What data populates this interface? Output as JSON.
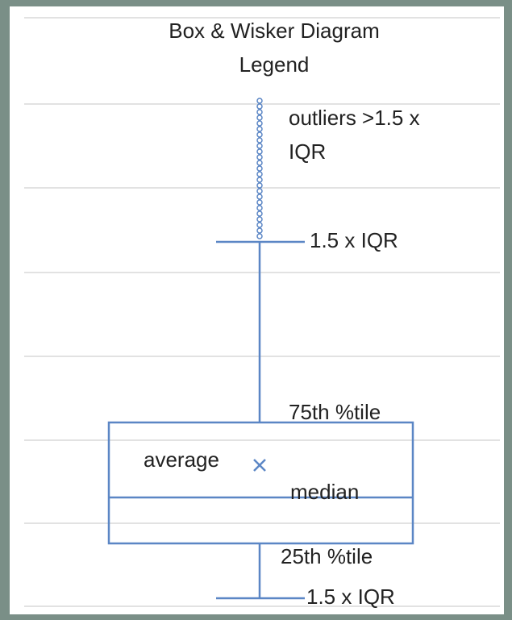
{
  "title_lines": [
    "Box & Wisker Diagram",
    "Legend"
  ],
  "labels": {
    "outliers": [
      "outliers >1.5 x",
      "IQR"
    ],
    "upper_whisker": "1.5 x IQR",
    "q3": "75th %tile",
    "average": "average",
    "median": "median",
    "q1": "25th %tile",
    "lower_whisker": "1.5 x IQR"
  }
}
